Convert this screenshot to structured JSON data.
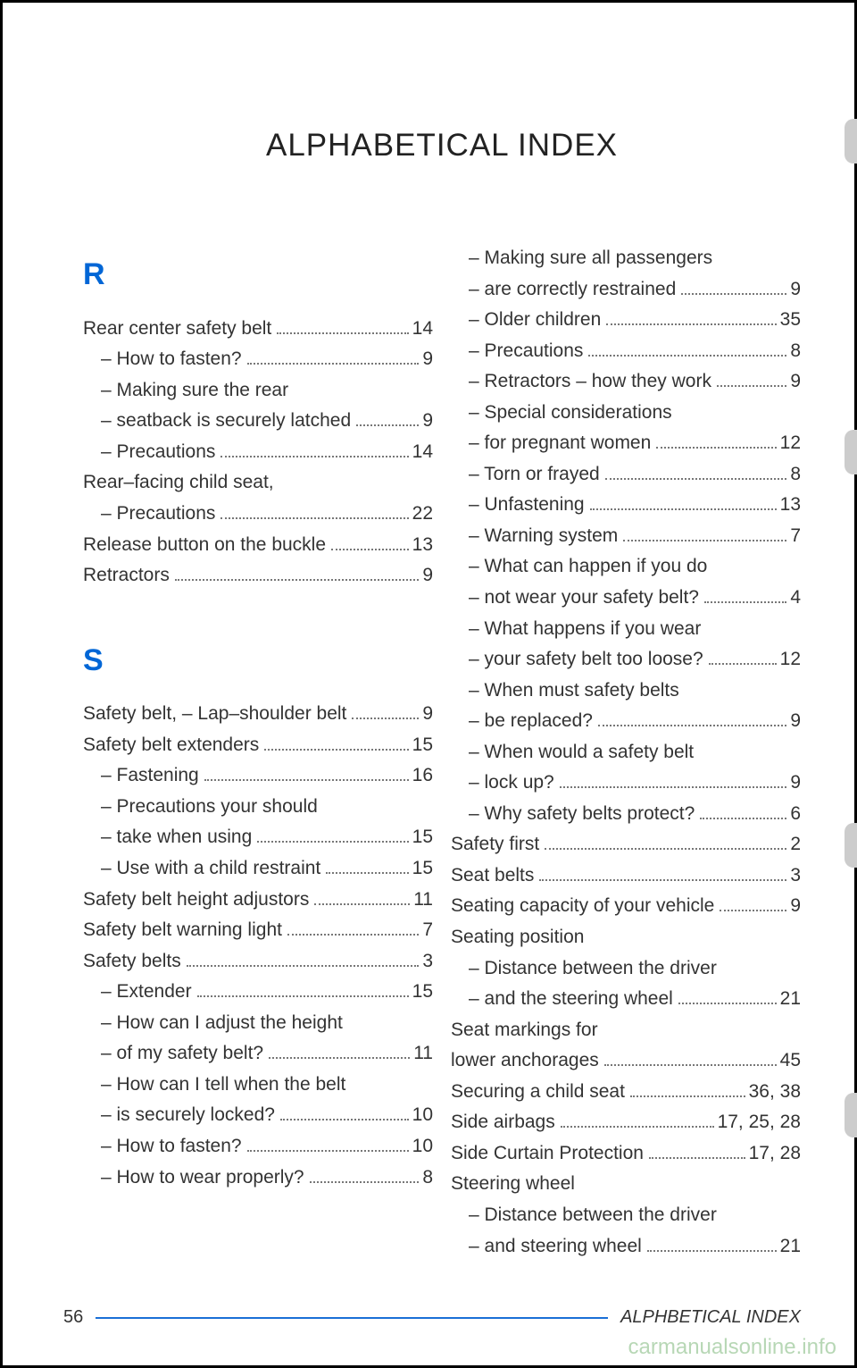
{
  "title": "ALPHABETICAL INDEX",
  "footer": {
    "pageNum": "56",
    "label": "ALPHBETICAL INDEX"
  },
  "watermark": "carmanualsonline.info",
  "columns": [
    [
      {
        "type": "letter",
        "text": "R"
      },
      {
        "type": "entry",
        "label": "Rear center safety belt",
        "page": "14"
      },
      {
        "type": "entry",
        "sub": true,
        "label": "How to fasten?",
        "page": "9"
      },
      {
        "type": "entry",
        "sub": true,
        "nopg": true,
        "label": "Making sure the rear"
      },
      {
        "type": "entry",
        "cont": true,
        "label": "seatback is securely latched",
        "page": "9"
      },
      {
        "type": "entry",
        "sub": true,
        "label": "Precautions",
        "page": "14"
      },
      {
        "type": "entry",
        "nopg": true,
        "label": "Rear–facing child seat,"
      },
      {
        "type": "entry",
        "sub": true,
        "label": "Precautions",
        "page": "22"
      },
      {
        "type": "entry",
        "label": "Release button on the buckle",
        "page": "13"
      },
      {
        "type": "entry",
        "label": "Retractors",
        "page": "9"
      },
      {
        "type": "spacer"
      },
      {
        "type": "letter",
        "text": "S"
      },
      {
        "type": "entry",
        "label": "Safety belt, – Lap–shoulder belt",
        "page": "9"
      },
      {
        "type": "entry",
        "label": "Safety belt extenders",
        "page": "15"
      },
      {
        "type": "entry",
        "sub": true,
        "label": "Fastening",
        "page": "16"
      },
      {
        "type": "entry",
        "sub": true,
        "nopg": true,
        "label": "Precautions your should"
      },
      {
        "type": "entry",
        "cont": true,
        "label": "take when using",
        "page": "15"
      },
      {
        "type": "entry",
        "sub": true,
        "label": "Use with a child restraint",
        "page": "15"
      },
      {
        "type": "entry",
        "label": "Safety belt height adjustors",
        "page": "11"
      },
      {
        "type": "entry",
        "label": "Safety belt warning light",
        "page": "7"
      },
      {
        "type": "entry",
        "label": "Safety belts",
        "page": "3"
      },
      {
        "type": "entry",
        "sub": true,
        "label": "Extender",
        "page": "15"
      },
      {
        "type": "entry",
        "sub": true,
        "nopg": true,
        "label": "How can I adjust the height"
      },
      {
        "type": "entry",
        "cont": true,
        "label": "of my safety belt?",
        "page": "11"
      },
      {
        "type": "entry",
        "sub": true,
        "nopg": true,
        "label": "How can I tell when the belt"
      },
      {
        "type": "entry",
        "cont": true,
        "label": "is securely locked?",
        "page": "10"
      },
      {
        "type": "entry",
        "sub": true,
        "label": "How to fasten?",
        "page": "10"
      },
      {
        "type": "entry",
        "sub": true,
        "label": "How to wear properly?",
        "page": "8"
      }
    ],
    [
      {
        "type": "entry",
        "sub": true,
        "nopg": true,
        "label": "Making sure all passengers"
      },
      {
        "type": "entry",
        "cont": true,
        "label": "are correctly restrained",
        "page": "9"
      },
      {
        "type": "entry",
        "sub": true,
        "label": "Older children",
        "page": "35"
      },
      {
        "type": "entry",
        "sub": true,
        "label": "Precautions",
        "page": "8"
      },
      {
        "type": "entry",
        "sub": true,
        "label": "Retractors – how they work",
        "page": "9"
      },
      {
        "type": "entry",
        "sub": true,
        "nopg": true,
        "label": "Special considerations"
      },
      {
        "type": "entry",
        "cont": true,
        "label": "for pregnant women",
        "page": "12"
      },
      {
        "type": "entry",
        "sub": true,
        "label": "Torn or frayed",
        "page": "8"
      },
      {
        "type": "entry",
        "sub": true,
        "label": "Unfastening",
        "page": "13"
      },
      {
        "type": "entry",
        "sub": true,
        "label": "Warning system",
        "page": "7"
      },
      {
        "type": "entry",
        "sub": true,
        "nopg": true,
        "label": "What can happen if you do"
      },
      {
        "type": "entry",
        "cont": true,
        "label": "not wear your safety belt?",
        "page": "4"
      },
      {
        "type": "entry",
        "sub": true,
        "nopg": true,
        "label": "What happens if you wear"
      },
      {
        "type": "entry",
        "cont": true,
        "label": "your safety belt too loose?",
        "page": "12"
      },
      {
        "type": "entry",
        "sub": true,
        "nopg": true,
        "label": "When must safety belts"
      },
      {
        "type": "entry",
        "cont": true,
        "label": "be replaced?",
        "page": "9"
      },
      {
        "type": "entry",
        "sub": true,
        "nopg": true,
        "label": "When would a safety belt"
      },
      {
        "type": "entry",
        "cont": true,
        "label": "lock up?",
        "page": "9"
      },
      {
        "type": "entry",
        "sub": true,
        "label": "Why safety belts protect?",
        "page": "6"
      },
      {
        "type": "entry",
        "label": "Safety first",
        "page": "2"
      },
      {
        "type": "entry",
        "label": "Seat belts",
        "page": "3"
      },
      {
        "type": "entry",
        "label": "Seating capacity of your vehicle",
        "page": "9"
      },
      {
        "type": "entry",
        "nopg": true,
        "label": "Seating position"
      },
      {
        "type": "entry",
        "sub": true,
        "nopg": true,
        "label": "Distance between the driver"
      },
      {
        "type": "entry",
        "cont": true,
        "label": "and the steering wheel",
        "page": "21"
      },
      {
        "type": "entry",
        "nopg": true,
        "label": "Seat markings for"
      },
      {
        "type": "entry",
        "label": "lower anchorages",
        "page": "45"
      },
      {
        "type": "entry",
        "label": "Securing a child seat",
        "page": "36, 38"
      },
      {
        "type": "entry",
        "label": "Side airbags",
        "page": "17, 25, 28"
      },
      {
        "type": "entry",
        "label": "Side Curtain Protection",
        "page": "17, 28"
      },
      {
        "type": "entry",
        "nopg": true,
        "label": "Steering wheel"
      },
      {
        "type": "entry",
        "sub": true,
        "nopg": true,
        "label": "Distance between the driver"
      },
      {
        "type": "entry",
        "cont": true,
        "label": "and steering wheel",
        "page": "21"
      }
    ]
  ]
}
